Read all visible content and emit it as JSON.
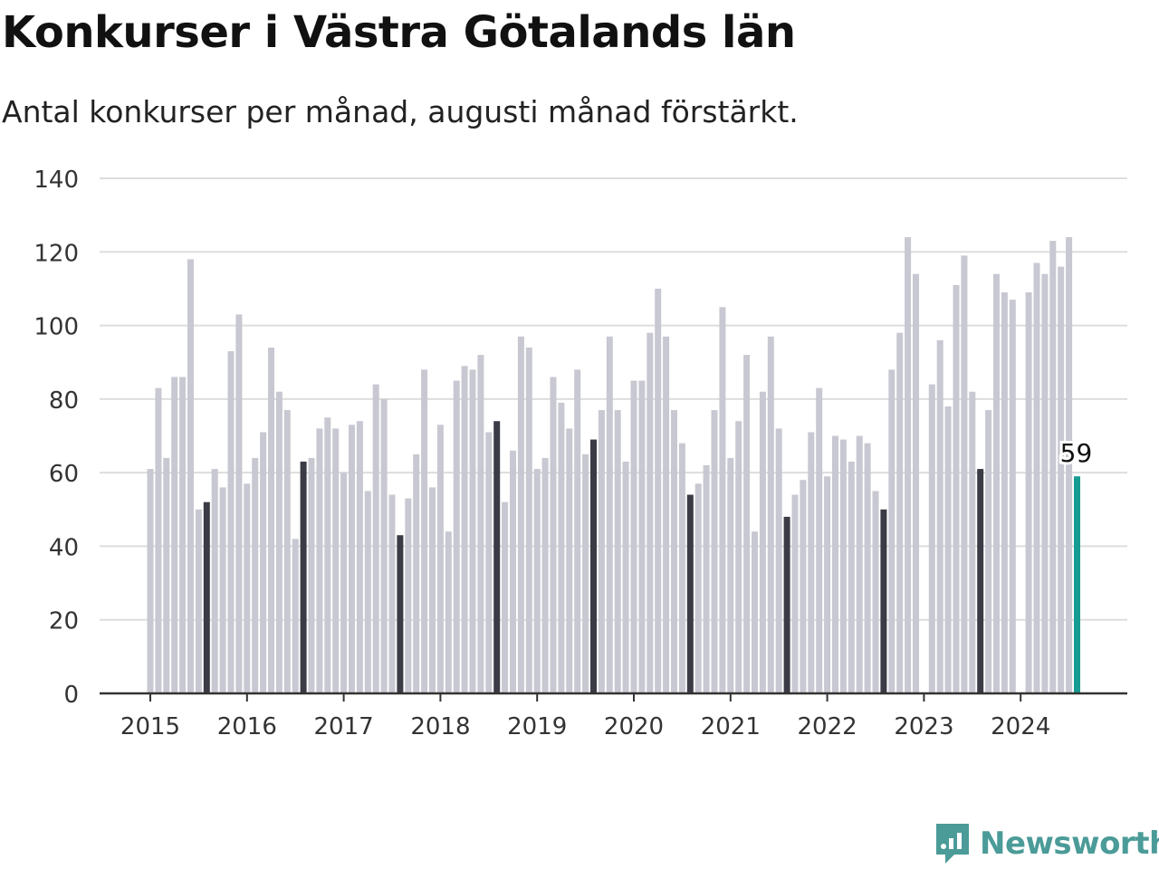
{
  "header": {
    "title": "Konkurser i Västra Götalands län",
    "subtitle": "Antal konkurser per månad, augusti månad förstärkt."
  },
  "brand": {
    "name": "Newsworthy",
    "color": "#4b9b98",
    "icon": "newsworthy-logo-icon"
  },
  "colors": {
    "bar": "#c8c8d2",
    "highlight": "#3b3b46",
    "latest": "#169c93",
    "grid": "#dddddd",
    "axis": "#333333"
  },
  "chart_data": {
    "type": "bar",
    "title": "Konkurser i Västra Götalands län",
    "subtitle": "Antal konkurser per månad, augusti månad förstärkt.",
    "xlabel": "",
    "ylabel": "",
    "ylim": [
      0,
      140
    ],
    "yticks": [
      0,
      20,
      40,
      60,
      80,
      100,
      120,
      140
    ],
    "xticks": [
      "2015",
      "2016",
      "2017",
      "2018",
      "2019",
      "2020",
      "2021",
      "2022",
      "2023",
      "2024"
    ],
    "grid": true,
    "start": "2015-01",
    "highlight_month": "augusti",
    "latest_label": "59",
    "series": [
      {
        "values": [
          61,
          83,
          64,
          86,
          86,
          118,
          50,
          52,
          61,
          56,
          93,
          103,
          57,
          64,
          71,
          94,
          82,
          77,
          42,
          63,
          64,
          72,
          75,
          72,
          60,
          73,
          74,
          55,
          84,
          80,
          54,
          43,
          53,
          65,
          88,
          56,
          73,
          44,
          85,
          89,
          88,
          92,
          71,
          74,
          52,
          66,
          97,
          94,
          61,
          64,
          86,
          79,
          72,
          88,
          65,
          69,
          77,
          97,
          77,
          63,
          85,
          85,
          98,
          110,
          97,
          77,
          68,
          54,
          57,
          62,
          77,
          105,
          64,
          74,
          92,
          44,
          82,
          97,
          72,
          48,
          54,
          58,
          71,
          83,
          59,
          70,
          69,
          63,
          70,
          68,
          55,
          50,
          88,
          98,
          124,
          114,
          null,
          84,
          96,
          78,
          111,
          119,
          82,
          61,
          77,
          114,
          109,
          107,
          null,
          109,
          117,
          114,
          123,
          116,
          124,
          59
        ]
      }
    ]
  }
}
